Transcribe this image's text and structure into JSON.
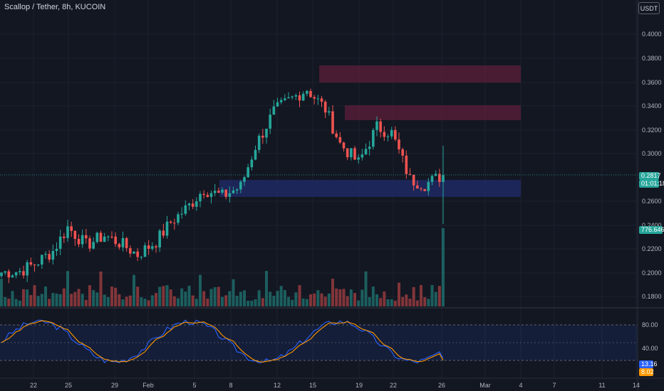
{
  "header": {
    "symbol_title": "Scallop / Tether, 8h, KUCOIN",
    "currency_button": "USDT"
  },
  "price_axis": {
    "ticks": [
      "0.4000",
      "0.3800",
      "0.3600",
      "0.3400",
      "0.3200",
      "0.3000",
      "0.2600",
      "0.2400",
      "0.2200",
      "0.2000",
      "0.1800"
    ],
    "last_price": "0.2817",
    "countdown": "01:01:18",
    "volume_label": "776.646K"
  },
  "oscillator_axis": {
    "ticks": [
      "80.00",
      "40.00"
    ],
    "k_value": "13.16",
    "d_value": "8.02"
  },
  "time_axis": {
    "ticks": [
      "22",
      "25",
      "29",
      "Feb",
      "5",
      "8",
      "12",
      "15",
      "19",
      "22",
      "26",
      "Mar",
      "4",
      "7",
      "11",
      "14"
    ]
  },
  "colors": {
    "background": "#131722",
    "up": "#26a69a",
    "down": "#ef5350",
    "supply_zone": "#5c1f3a",
    "demand_zone": "#1f2a66",
    "k_line": "#2962ff",
    "d_line": "#ff9800",
    "grid": "#1e222d"
  },
  "chart_data": [
    {
      "type": "candlestick",
      "title": "Scallop / Tether, 8h, KUCOIN",
      "x_range": [
        "Jan 19",
        "Mar 14"
      ],
      "ylim": [
        0.17,
        0.41
      ],
      "grid": true,
      "last_close": 0.2817,
      "closes_by_day": [
        {
          "x": "20 Jan",
          "close": 0.2
        },
        {
          "x": "22 Jan",
          "close": 0.201
        },
        {
          "x": "24 Jan",
          "close": 0.207
        },
        {
          "x": "25 Jan",
          "close": 0.218
        },
        {
          "x": "27 Jan",
          "close": 0.238
        },
        {
          "x": "29 Jan",
          "close": 0.223
        },
        {
          "x": "31 Jan",
          "close": 0.231
        },
        {
          "x": "2 Feb",
          "close": 0.225
        },
        {
          "x": "4 Feb",
          "close": 0.215
        },
        {
          "x": "6 Feb",
          "close": 0.226
        },
        {
          "x": "7 Feb",
          "close": 0.242
        },
        {
          "x": "8 Feb",
          "close": 0.256
        },
        {
          "x": "10 Feb",
          "close": 0.27
        },
        {
          "x": "12 Feb",
          "close": 0.264
        },
        {
          "x": "13 Feb",
          "close": 0.272
        },
        {
          "x": "14 Feb",
          "close": 0.306
        },
        {
          "x": "15 Feb",
          "close": 0.335
        },
        {
          "x": "16 Feb",
          "close": 0.344
        },
        {
          "x": "17 Feb",
          "close": 0.354
        },
        {
          "x": "18 Feb",
          "close": 0.337
        },
        {
          "x": "19 Feb",
          "close": 0.308
        },
        {
          "x": "20 Feb",
          "close": 0.292
        },
        {
          "x": "22 Feb",
          "close": 0.322
        },
        {
          "x": "23 Feb",
          "close": 0.317
        },
        {
          "x": "24 Feb",
          "close": 0.278
        },
        {
          "x": "25 Feb",
          "close": 0.274
        },
        {
          "x": "26 Feb",
          "close": 0.2817
        }
      ],
      "zones": [
        {
          "label": "supply upper",
          "from": 0.361,
          "to": 0.374
        },
        {
          "label": "supply lower",
          "from": 0.329,
          "to": 0.341
        },
        {
          "label": "demand",
          "from": 0.265,
          "to": 0.28
        }
      ]
    },
    {
      "type": "bar",
      "title": "Volume",
      "last_value": "776.646K"
    },
    {
      "type": "line",
      "title": "Stochastic RSI",
      "ylim": [
        0,
        100
      ],
      "bands": [
        20,
        50,
        80
      ],
      "series": [
        {
          "name": "K",
          "color": "#2962ff",
          "last": 13.16
        },
        {
          "name": "D",
          "color": "#ff9800",
          "last": 8.02
        }
      ]
    }
  ]
}
